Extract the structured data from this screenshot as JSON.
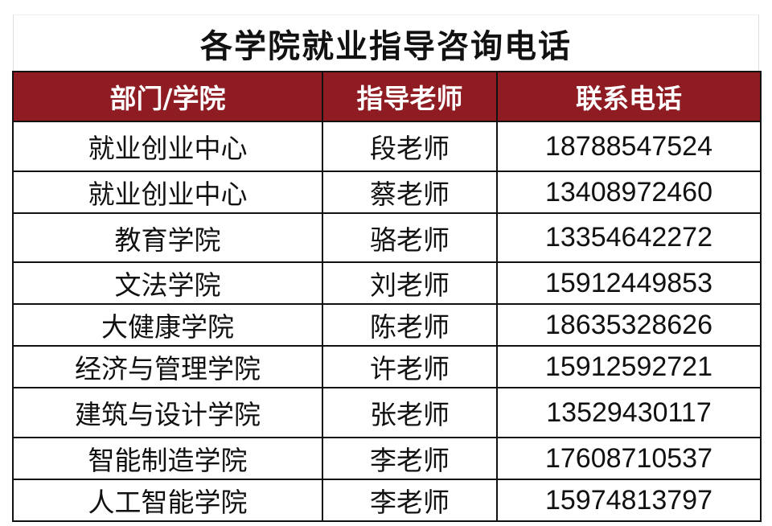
{
  "title": "各学院就业指导咨询电话",
  "header_color": "#8e1c22",
  "columns": [
    "部门/学院",
    "指导老师",
    "联系电话"
  ],
  "rows": [
    [
      "就业创业中心",
      "段老师",
      "18788547524"
    ],
    [
      "就业创业中心",
      "蔡老师",
      "13408972460"
    ],
    [
      "教育学院",
      "骆老师",
      "13354642272"
    ],
    [
      "文法学院",
      "刘老师",
      "15912449853"
    ],
    [
      "大健康学院",
      "陈老师",
      "18635328626"
    ],
    [
      "经济与管理学院",
      "许老师",
      "15912592721"
    ],
    [
      "建筑与设计学院",
      "张老师",
      "13529430117"
    ],
    [
      "智能制造学院",
      "李老师",
      "17608710537"
    ],
    [
      "人工智能学院",
      "李老师",
      "15974813797"
    ]
  ]
}
